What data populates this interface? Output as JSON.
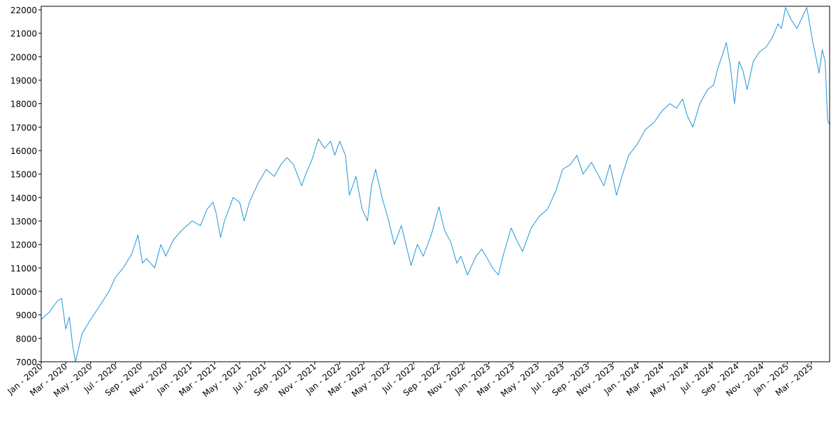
{
  "chart_data": {
    "type": "line",
    "title": "",
    "xlabel": "",
    "ylabel": "",
    "grid": false,
    "legend": "none",
    "line_color": "#1f96d8",
    "x_tick_labels": [
      "Jan - 2020",
      "Mar - 2020",
      "May - 2020",
      "Jul - 2020",
      "Sep - 2020",
      "Nov - 2020",
      "Jan - 2021",
      "Mar - 2021",
      "May - 2021",
      "Jul - 2021",
      "Sep - 2021",
      "Nov - 2021",
      "Jan - 2022",
      "Mar - 2022",
      "May - 2022",
      "Jul - 2022",
      "Sep - 2022",
      "Nov - 2022",
      "Jan - 2023",
      "Mar - 2023",
      "May - 2023",
      "Jul - 2023",
      "Sep - 2023",
      "Nov - 2023",
      "Jan - 2024",
      "Mar - 2024",
      "May - 2024",
      "Jul - 2024",
      "Sep - 2024",
      "Nov - 2024",
      "Jan - 2025",
      "Mar - 2025"
    ],
    "y_tick_labels": [
      "7000",
      "8000",
      "9000",
      "10000",
      "11000",
      "12000",
      "13000",
      "14000",
      "15000",
      "16000",
      "17000",
      "18000",
      "19000",
      "20000",
      "21000",
      "22000"
    ],
    "xlim": [
      "2020-01-01",
      "2025-04-15"
    ],
    "ylim": [
      7000,
      22150
    ],
    "series": [
      {
        "x": [
          "2020-01-01",
          "2020-01-20",
          "2020-02-10",
          "2020-02-20",
          "2020-03-01",
          "2020-03-10",
          "2020-03-18",
          "2020-03-25",
          "2020-04-10",
          "2020-05-01",
          "2020-05-20",
          "2020-06-15",
          "2020-07-01",
          "2020-07-20",
          "2020-08-10",
          "2020-08-25",
          "2020-09-05",
          "2020-09-15",
          "2020-10-05",
          "2020-10-20",
          "2020-11-01",
          "2020-11-20",
          "2020-12-10",
          "2021-01-05",
          "2021-01-25",
          "2021-02-10",
          "2021-02-25",
          "2021-03-05",
          "2021-03-15",
          "2021-03-25",
          "2021-04-15",
          "2021-05-01",
          "2021-05-12",
          "2021-05-25",
          "2021-06-15",
          "2021-07-05",
          "2021-07-25",
          "2021-08-10",
          "2021-08-25",
          "2021-09-10",
          "2021-09-30",
          "2021-10-10",
          "2021-10-25",
          "2021-11-10",
          "2021-11-25",
          "2021-12-10",
          "2021-12-20",
          "2022-01-01",
          "2022-01-15",
          "2022-01-25",
          "2022-02-10",
          "2022-02-25",
          "2022-03-10",
          "2022-03-20",
          "2022-03-30",
          "2022-04-15",
          "2022-05-01",
          "2022-05-15",
          "2022-06-01",
          "2022-06-15",
          "2022-06-25",
          "2022-07-10",
          "2022-07-25",
          "2022-08-15",
          "2022-09-01",
          "2022-09-15",
          "2022-09-30",
          "2022-10-15",
          "2022-10-25",
          "2022-11-10",
          "2022-12-01",
          "2022-12-15",
          "2023-01-01",
          "2023-01-10",
          "2023-01-25",
          "2023-02-05",
          "2023-02-25",
          "2023-03-10",
          "2023-03-25",
          "2023-04-15",
          "2023-05-05",
          "2023-05-25",
          "2023-06-15",
          "2023-07-01",
          "2023-07-20",
          "2023-08-05",
          "2023-08-20",
          "2023-09-10",
          "2023-09-25",
          "2023-10-10",
          "2023-10-25",
          "2023-11-10",
          "2023-11-25",
          "2023-12-10",
          "2024-01-01",
          "2024-01-20",
          "2024-02-10",
          "2024-03-01",
          "2024-03-20",
          "2024-04-05",
          "2024-04-20",
          "2024-05-01",
          "2024-05-15",
          "2024-06-01",
          "2024-06-20",
          "2024-07-05",
          "2024-07-15",
          "2024-07-25",
          "2024-08-05",
          "2024-08-15",
          "2024-08-25",
          "2024-09-05",
          "2024-09-15",
          "2024-09-25",
          "2024-10-10",
          "2024-10-25",
          "2024-11-10",
          "2024-11-25",
          "2024-12-10",
          "2024-12-18",
          "2024-12-28",
          "2025-01-10",
          "2025-01-25",
          "2025-02-10",
          "2025-02-18",
          "2025-02-25",
          "2025-03-05",
          "2025-03-10",
          "2025-03-20",
          "2025-03-28",
          "2025-04-04",
          "2025-04-10",
          "2025-04-15"
        ],
        "y": [
          8800,
          9100,
          9600,
          9700,
          8400,
          8900,
          7700,
          7000,
          8200,
          8800,
          9300,
          10000,
          10600,
          11000,
          11600,
          12400,
          11200,
          11400,
          11000,
          12000,
          11500,
          12200,
          12600,
          13000,
          12800,
          13500,
          13800,
          13300,
          12300,
          13000,
          14000,
          13800,
          13000,
          13800,
          14600,
          15200,
          14900,
          15400,
          15700,
          15400,
          14500,
          15000,
          15600,
          16500,
          16100,
          16400,
          15800,
          16400,
          15800,
          14100,
          14900,
          13500,
          13000,
          14500,
          15200,
          14000,
          13000,
          12000,
          12800,
          11800,
          11100,
          12000,
          11500,
          12500,
          13600,
          12600,
          12100,
          11200,
          11500,
          10700,
          11500,
          11800,
          11300,
          11000,
          10700,
          11500,
          12700,
          12200,
          11700,
          12700,
          13200,
          13500,
          14300,
          15200,
          15400,
          15800,
          15000,
          15500,
          15000,
          14500,
          15400,
          14100,
          15000,
          15800,
          16300,
          16900,
          17200,
          17700,
          18000,
          17800,
          18200,
          17500,
          17000,
          18000,
          18600,
          18800,
          19500,
          20000,
          20600,
          19600,
          18000,
          19800,
          19400,
          18600,
          19800,
          20200,
          20400,
          20800,
          21400,
          21200,
          22100,
          21600,
          21200,
          21800,
          22100,
          21400,
          20600,
          20200,
          19300,
          20300,
          19800,
          17300,
          17100
        ]
      }
    ]
  }
}
